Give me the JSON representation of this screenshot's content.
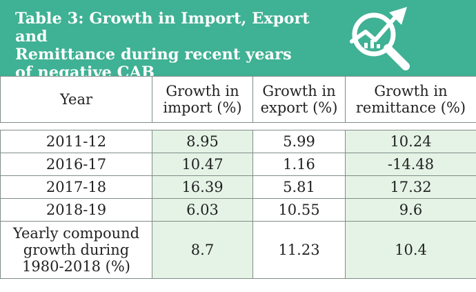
{
  "title": {
    "lines": [
      "Table 3: Growth in Import, Export and",
      "Remittance during recent years",
      "of negative CAB"
    ]
  },
  "icon": "growth-chart-magnifier-icon",
  "colors": {
    "header": "#3fb194",
    "tint": "#e4f3e6",
    "border": "#7f8c86"
  },
  "table": {
    "headers": {
      "year": "Year",
      "import": [
        "Growth in",
        "import (%)"
      ],
      "export": [
        "Growth in",
        "export (%)"
      ],
      "remittance": [
        "Growth in",
        "remittance (%)"
      ]
    },
    "rows": [
      {
        "year": "2011-12",
        "import": "8.95",
        "export": "5.99",
        "remittance": "10.24"
      },
      {
        "year": "2016-17",
        "import": "10.47",
        "export": "1.16",
        "remittance": "-14.48"
      },
      {
        "year": "2017-18",
        "import": "16.39",
        "export": "5.81",
        "remittance": "17.32"
      },
      {
        "year": "2018-19",
        "import": "6.03",
        "export": "10.55",
        "remittance": "9.6"
      }
    ],
    "footer": {
      "label": [
        "Yearly compound",
        "growth during",
        "1980-2018 (%)"
      ],
      "import": "8.7",
      "export": "11.23",
      "remittance": "10.4"
    }
  }
}
